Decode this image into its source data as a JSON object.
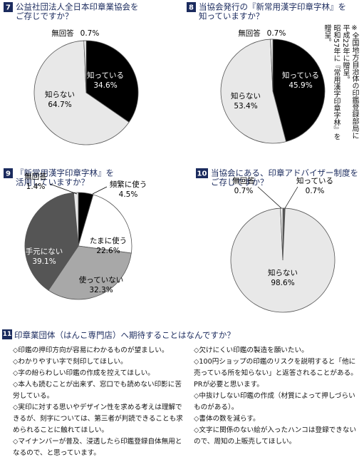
{
  "chart_data": [
    {
      "type": "pie",
      "number": "7",
      "title": [
        "公益社団法人全日本印章業協会を",
        "ご存じですか？"
      ],
      "categories": [
        "知っている",
        "知らない",
        "無回答"
      ],
      "values": [
        34.6,
        64.7,
        0.7
      ],
      "value_labels": [
        "34.6%",
        "64.7%",
        "0.7%"
      ],
      "colors": [
        "#000000",
        "#e8e8e8",
        "#ffffff"
      ]
    },
    {
      "type": "pie",
      "number": "8",
      "title": [
        "当協会発行の『新常用漢字印章字林』を",
        "知っていますか？"
      ],
      "categories": [
        "知っている",
        "知らない",
        "無回答"
      ],
      "values": [
        45.9,
        53.4,
        0.7
      ],
      "value_labels": [
        "45.9%",
        "53.4%",
        "0.7%"
      ],
      "colors": [
        "#000000",
        "#e8e8e8",
        "#ffffff"
      ]
    },
    {
      "type": "pie",
      "number": "9",
      "title": [
        "『新常用漢字印章字林』を",
        "活用していますか？"
      ],
      "categories": [
        "頻繁に使う",
        "たまに使う",
        "使っていない",
        "手元にない",
        "無回答"
      ],
      "values": [
        4.5,
        22.6,
        32.3,
        39.1,
        1.4
      ],
      "value_labels": [
        "4.5%",
        "22.6%",
        "32.3%",
        "39.1%",
        "1.4%"
      ],
      "colors": [
        "#000000",
        "#ffffff",
        "#a8a8a8",
        "#555555",
        "#e8e8e8"
      ]
    },
    {
      "type": "pie",
      "number": "10",
      "title": [
        "当協会にある、印章アドバイザー制度を",
        "ご存じですか？"
      ],
      "categories": [
        "知っている",
        "知らない",
        "無回答"
      ],
      "values": [
        0.7,
        98.6,
        0.7
      ],
      "value_labels": [
        "0.7%",
        "98.6%",
        "0.7%"
      ],
      "colors": [
        "#555555",
        "#e8e8e8",
        "#ffffff"
      ]
    }
  ],
  "note": [
    "※全国地方自治体の印鑑登録部局に",
    "平成22年に贈呈。",
    "昭和57年に『常用漢字印章字林』を",
    "贈呈。"
  ],
  "section": {
    "number": "11",
    "title": "印章業団体（はんこ専門店）へ期待することはなんですか？",
    "left": [
      "◇印鑑の押印方向が容易にわかるものが望ましい。",
      "◇わかりやすい字で刻印してほしい。",
      "◇字の紛らわしい印鑑の作成を控えてほしい。",
      "◇本人も読むことが出来ず、窓口でも読めない印影に苦労している。",
      "◇実印に対する思いやデザイン性を求める考えは理解できるが、刻字については、第三者が判読できることも求められることに触れてほしい。",
      "◇マイナンバーが普及、浸透したら印鑑登録自体無用となるので、と思っています。"
    ],
    "right": [
      "◇欠けにくい印鑑の製造を願いたい。",
      "◇100円ショップの印鑑のリスクを説明すると「他に売っている所を知らない」と返答されることがある。PRが必要と思います。",
      "◇中抜けしない印鑑の作成（材質によって押しづらいものがある）。",
      "◇書体の数を減らす。",
      "◇文字に関係のない絵が入ったハンコは登録できないので、周知の上販売してほしい。"
    ]
  }
}
